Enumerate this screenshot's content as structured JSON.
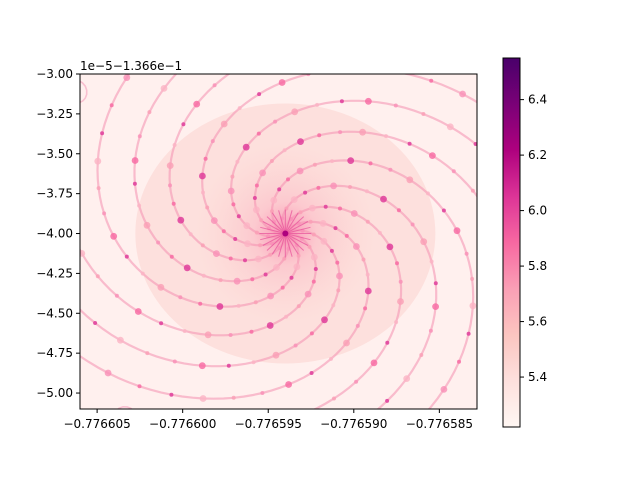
{
  "chart_data": {
    "type": "heatmap",
    "title": "",
    "xlabel": "",
    "ylabel": "",
    "colormap": "RdPu",
    "xlim": [
      -0.776606,
      -0.7765828
    ],
    "ylim_offset_units": [
      -5.1,
      -3.0
    ],
    "y_offset_text": "1e−5−1.366e−1",
    "x_ticks": [
      {
        "value": -0.776605,
        "label": "−0.776605"
      },
      {
        "value": -0.7766,
        "label": "−0.776600"
      },
      {
        "value": -0.776595,
        "label": "−0.776595"
      },
      {
        "value": -0.77659,
        "label": "−0.776590"
      },
      {
        "value": -0.776585,
        "label": "−0.776585"
      }
    ],
    "y_ticks": [
      {
        "value": -3.0,
        "label": "−3.00"
      },
      {
        "value": -3.25,
        "label": "−3.25"
      },
      {
        "value": -3.5,
        "label": "−3.50"
      },
      {
        "value": -3.75,
        "label": "−3.75"
      },
      {
        "value": -4.0,
        "label": "−4.00"
      },
      {
        "value": -4.25,
        "label": "−4.25"
      },
      {
        "value": -4.5,
        "label": "−4.50"
      },
      {
        "value": -4.75,
        "label": "−4.75"
      },
      {
        "value": -5.0,
        "label": "−5.00"
      }
    ],
    "colorbar": {
      "range": [
        5.22,
        6.55
      ],
      "ticks": [
        {
          "value": 5.4,
          "label": "5.4"
        },
        {
          "value": 5.6,
          "label": "5.6"
        },
        {
          "value": 5.8,
          "label": "5.8"
        },
        {
          "value": 6.0,
          "label": "6.0"
        },
        {
          "value": 6.2,
          "label": "6.2"
        },
        {
          "value": 6.4,
          "label": "6.4"
        }
      ],
      "colors": [
        "#fff7f3",
        "#fde0dd",
        "#fcc5c0",
        "#fa9fb5",
        "#f768a1",
        "#dd3497",
        "#ae017e",
        "#7a0177",
        "#49006a"
      ]
    },
    "fractal": {
      "center_x": -0.776594,
      "center_y_offset_units": -4.0,
      "spiral_arms": 12
    }
  }
}
